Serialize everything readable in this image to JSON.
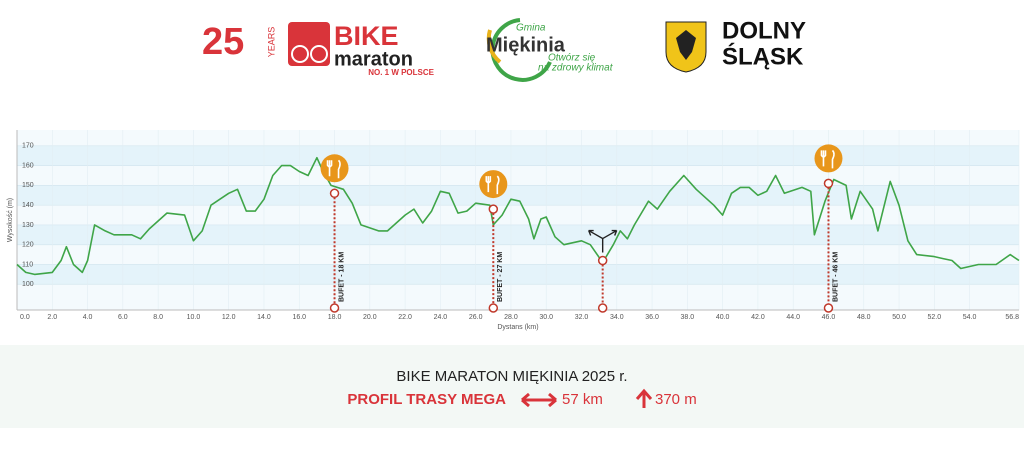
{
  "header": {
    "years_number": "25",
    "years_text": "YEARS",
    "bike": "BIKE",
    "maraton": "maraton",
    "tagline": "NO. 1 W POLSCE",
    "gmina": "Gmina",
    "miekinia": "Miękinia",
    "slogan1": "Otwórz się",
    "slogan2": "na zdrowy klimat",
    "dolny": "DOLNY",
    "slask": "ŚLĄSK"
  },
  "chart_data": {
    "type": "line",
    "title": "BIKE MARATON MIĘKINIA 2025 r.",
    "subtitle": "PROFIL TRASY MEGA",
    "distance": "57 km",
    "climb": "370 m",
    "xlabel": "Dystans (km)",
    "ylabel": "Wysokość (m)",
    "color": "#3fa548",
    "grid": true,
    "x": [
      0,
      0.5,
      1,
      2,
      2.5,
      2.8,
      3.2,
      3.7,
      4,
      4.4,
      5,
      5.5,
      6.5,
      7,
      7.5,
      8.5,
      9.5,
      10,
      10.5,
      11,
      11.5,
      12,
      12.5,
      13,
      13.5,
      14,
      14.5,
      15,
      15.5,
      16,
      16.5,
      17,
      17.3,
      17.8,
      18.5,
      19,
      19.5,
      20.5,
      21,
      22,
      22.5,
      23,
      23.5,
      24,
      24.5,
      25,
      25.5,
      26,
      26.8,
      27,
      27.5,
      28,
      28.5,
      29,
      29.3,
      29.7,
      30,
      30.5,
      31,
      32,
      32.5,
      33.2,
      33.8,
      34.2,
      34.6,
      35,
      35.8,
      36.3,
      37,
      37.8,
      38.5,
      39.5,
      40,
      40.5,
      41,
      41.5,
      42,
      42.5,
      43,
      43.5,
      44.5,
      45,
      45.2,
      45.8,
      46.3,
      47,
      47.3,
      47.8,
      48.5,
      48.8,
      49.5,
      50,
      50.5,
      51,
      52,
      52.5,
      53,
      53.5,
      54.5,
      55.5,
      56.3,
      56.8
    ],
    "values": [
      110,
      106,
      105,
      106,
      112,
      119,
      110,
      106,
      112,
      130,
      127,
      125,
      125,
      123,
      128,
      136,
      135,
      122,
      127,
      140,
      143,
      146,
      148,
      137,
      137,
      143,
      155,
      160,
      160,
      157,
      155,
      164,
      158,
      150,
      148,
      141,
      130,
      127,
      127,
      135,
      138,
      131,
      137,
      147,
      146,
      136,
      137,
      141,
      140,
      130,
      135,
      143,
      142,
      133,
      123,
      133,
      134,
      124,
      120,
      122,
      120,
      111,
      120,
      127,
      123,
      130,
      142,
      138,
      147,
      155,
      148,
      140,
      135,
      146,
      149,
      149,
      145,
      147,
      155,
      146,
      149,
      147,
      125,
      142,
      153,
      150,
      133,
      147,
      138,
      127,
      152,
      140,
      122,
      115,
      114,
      113,
      112,
      108,
      110,
      110,
      115,
      112
    ],
    "xlim": [
      0,
      56.8
    ],
    "ylim": [
      87,
      178
    ],
    "xticks": [
      {
        "value": 0,
        "label": "0.0"
      },
      {
        "value": 2,
        "label": "2.0"
      },
      {
        "value": 4,
        "label": "4.0"
      },
      {
        "value": 6,
        "label": "6.0"
      },
      {
        "value": 8,
        "label": "8.0"
      },
      {
        "value": 10,
        "label": "10.0"
      },
      {
        "value": 12,
        "label": "12.0"
      },
      {
        "value": 14,
        "label": "14.0"
      },
      {
        "value": 16,
        "label": "16.0"
      },
      {
        "value": 18,
        "label": "18.0"
      },
      {
        "value": 20,
        "label": "20.0"
      },
      {
        "value": 22,
        "label": "22.0"
      },
      {
        "value": 24,
        "label": "24.0"
      },
      {
        "value": 26,
        "label": "26.0"
      },
      {
        "value": 28,
        "label": "28.0"
      },
      {
        "value": 30,
        "label": "30.0"
      },
      {
        "value": 32,
        "label": "32.0"
      },
      {
        "value": 34,
        "label": "34.0"
      },
      {
        "value": 36,
        "label": "36.0"
      },
      {
        "value": 38,
        "label": "38.0"
      },
      {
        "value": 40,
        "label": "40.0"
      },
      {
        "value": 42,
        "label": "42.0"
      },
      {
        "value": 44,
        "label": "44.0"
      },
      {
        "value": 46,
        "label": "46.0"
      },
      {
        "value": 48,
        "label": "48.0"
      },
      {
        "value": 50,
        "label": "50.0"
      },
      {
        "value": 52,
        "label": "52.0"
      },
      {
        "value": 54,
        "label": "54.0"
      },
      {
        "value": 56.8,
        "label": "56.8"
      }
    ],
    "yticks": [
      100,
      110,
      120,
      130,
      140,
      150,
      160,
      170
    ],
    "annotations": [
      {
        "text": "BUFET - 18 KM",
        "x": 18,
        "y": 146
      },
      {
        "text": "BUFET - 27 KM",
        "x": 27,
        "y": 138
      },
      {
        "text": "BUFET - 46 KM",
        "x": 46,
        "y": 151
      }
    ],
    "junction": {
      "x": 33.2,
      "y": 112
    }
  }
}
